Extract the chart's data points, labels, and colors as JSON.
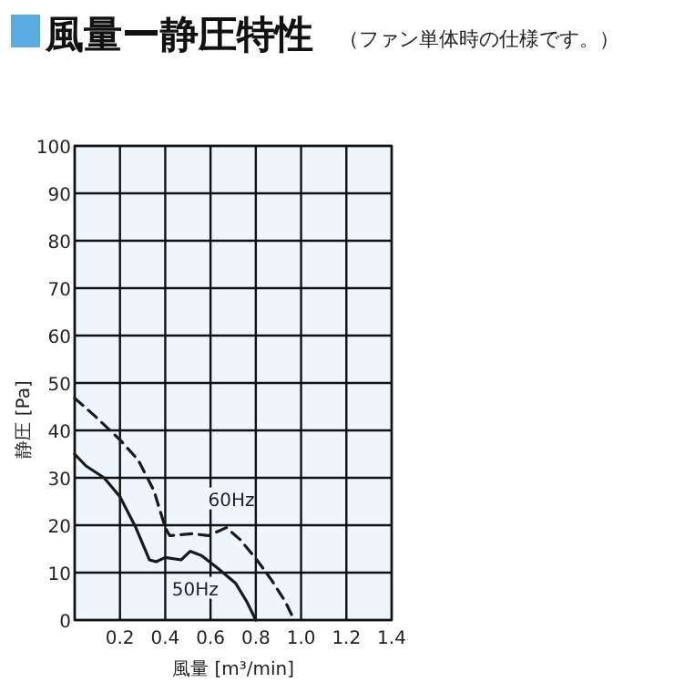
{
  "chart_data": {
    "type": "line",
    "title": "風量ー静圧特性",
    "subtitle": "（ファン単体時の仕様です。）",
    "xlabel": "風量 [m³/min]",
    "ylabel": "静圧 [Pa]",
    "xlim": [
      0,
      1.4
    ],
    "ylim": [
      0,
      100
    ],
    "xticks": [
      {
        "value": 0,
        "label": null
      },
      0.2,
      0.4,
      0.6,
      0.8,
      {
        "value": 1.0,
        "label": "1.0"
      },
      1.2,
      1.4
    ],
    "yticks": [
      0,
      10,
      20,
      30,
      40,
      50,
      60,
      70,
      80,
      90,
      100
    ],
    "grid": true,
    "series": [
      {
        "name": "50Hz",
        "color": "#1a1a1a",
        "line_style": "solid",
        "x": [
          0,
          0.05,
          0.13,
          0.2,
          0.27,
          0.33,
          0.36,
          0.4,
          0.47,
          0.51,
          0.56,
          0.63,
          0.71,
          0.76,
          0.8
        ],
        "values": [
          35,
          32.5,
          30,
          26,
          19.5,
          12.7,
          12.3,
          13.2,
          12.7,
          14.5,
          13.6,
          11,
          7.8,
          3.9,
          0
        ]
      },
      {
        "name": "60Hz",
        "color": "#1a1a1a",
        "line_style": "dashed",
        "x": [
          0,
          0.09,
          0.2,
          0.28,
          0.35,
          0.4,
          0.42,
          0.52,
          0.59,
          0.67,
          0.73,
          0.8,
          0.87,
          0.93,
          0.97
        ],
        "values": [
          46.8,
          43,
          38,
          33.8,
          27.3,
          19.5,
          17.8,
          18.2,
          17.8,
          19.5,
          17,
          13,
          8.4,
          3.9,
          0
        ]
      }
    ]
  }
}
